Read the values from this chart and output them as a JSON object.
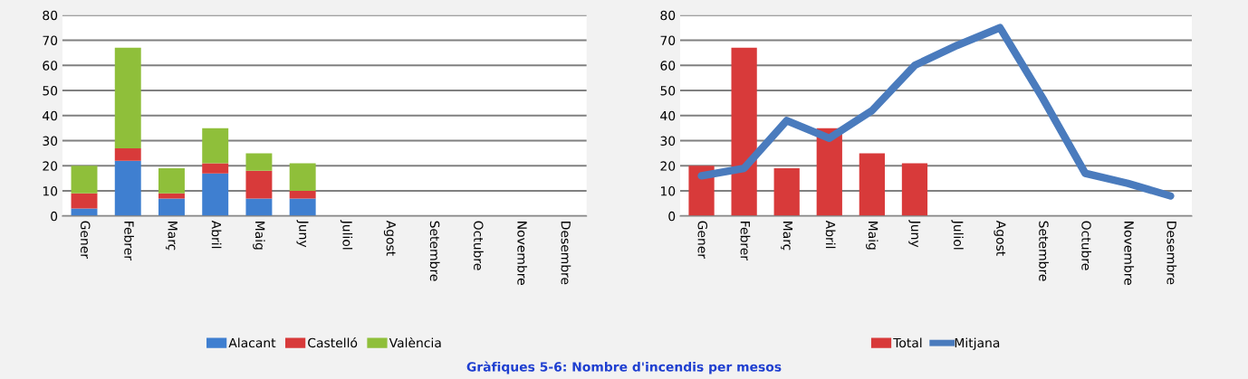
{
  "chart_data": [
    {
      "type": "bar",
      "stacked": true,
      "categories": [
        "Gener",
        "Febrer",
        "Març",
        "Abril",
        "Maig",
        "Juny",
        "Juliol",
        "Agost",
        "Setembre",
        "Octubre",
        "Novembre",
        "Desembre"
      ],
      "series": [
        {
          "name": "Alacant",
          "color": "#3f7fd0",
          "values": [
            3,
            22,
            7,
            17,
            7,
            7,
            null,
            null,
            null,
            null,
            null,
            null
          ]
        },
        {
          "name": "Castelló",
          "color": "#d83a3a",
          "values": [
            6,
            5,
            2,
            4,
            11,
            3,
            null,
            null,
            null,
            null,
            null,
            null
          ]
        },
        {
          "name": "València",
          "color": "#8fbf3a",
          "values": [
            11,
            40,
            10,
            14,
            7,
            11,
            null,
            null,
            null,
            null,
            null,
            null
          ]
        }
      ],
      "ylim": [
        0,
        80
      ],
      "yticks": [
        0,
        10,
        20,
        30,
        40,
        50,
        60,
        70,
        80
      ],
      "grid": "y",
      "legend": "bottom",
      "annotations": [
        "Gràfiques 5-6: Nombre d'incendis per mesos"
      ]
    },
    {
      "type": "bar",
      "categories": [
        "Gener",
        "Febrer",
        "Març",
        "Abril",
        "Maig",
        "Juny",
        "Juliol",
        "Agost",
        "Setembre",
        "Octubre",
        "Novembre",
        "Desembre"
      ],
      "series": [
        {
          "name": "Total",
          "color": "#d83a3a",
          "values": [
            20,
            67,
            19,
            35,
            25,
            21,
            null,
            null,
            null,
            null,
            null,
            null
          ]
        },
        {
          "name": "Mitjana",
          "type": "line",
          "color": "#4a7bbd",
          "values": [
            16,
            19,
            38,
            31,
            42,
            60,
            68,
            75,
            47,
            17,
            13,
            8
          ]
        }
      ],
      "ylim": [
        0,
        80
      ],
      "yticks": [
        0,
        10,
        20,
        30,
        40,
        50,
        60,
        70,
        80
      ],
      "grid": "y",
      "legend": "bottom",
      "line_style": "solid",
      "marker": "none"
    }
  ]
}
